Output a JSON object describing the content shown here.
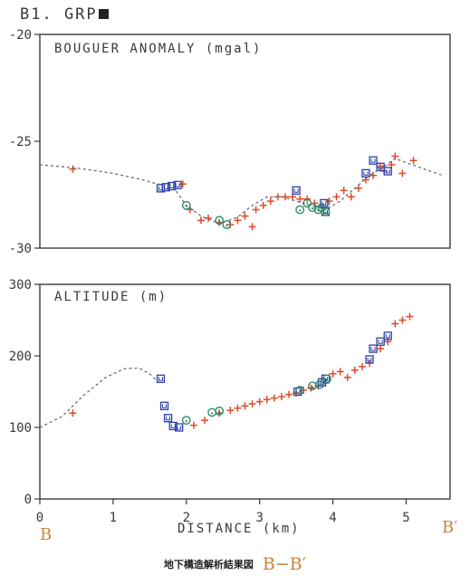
{
  "file_name": "B1. GRP",
  "profile_start_label": "B",
  "profile_end_label": "B′",
  "caption": {
    "japanese": "地下構造解析結果図",
    "profile": "B−B′"
  },
  "colors": {
    "axis": "#3a3a3a",
    "observed": "#e04a2a",
    "model": "#6e6e6e",
    "blue_markers": "#2c3fa8",
    "green_markers": "#2f8a6e",
    "end_labels": "#c8843c"
  },
  "marker_legend": {
    "observed": "plus",
    "blue_markers": "square-U",
    "green_markers": "circle"
  },
  "chart_data": [
    {
      "type": "scatter",
      "title": "BOUGUER ANOMALY (mgal)",
      "xlabel": "",
      "ylabel": "",
      "xlim": [
        0,
        5.6
      ],
      "ylim": [
        -30,
        -20
      ],
      "y_ticks": [
        -30,
        -25,
        -20
      ],
      "grid": false,
      "series": [
        {
          "marker": "plus",
          "color": "#e04a2a",
          "points": [
            [
              0.45,
              -26.3
            ],
            [
              1.95,
              -27.0
            ],
            [
              2.05,
              -28.2
            ],
            [
              2.2,
              -28.7
            ],
            [
              2.3,
              -28.6
            ],
            [
              2.45,
              -28.8
            ],
            [
              2.6,
              -28.9
            ],
            [
              2.7,
              -28.7
            ],
            [
              2.8,
              -28.5
            ],
            [
              2.9,
              -29.0
            ],
            [
              2.95,
              -28.2
            ],
            [
              3.05,
              -28.0
            ],
            [
              3.15,
              -27.8
            ],
            [
              3.25,
              -27.6
            ],
            [
              3.35,
              -27.6
            ],
            [
              3.45,
              -27.6
            ],
            [
              3.55,
              -27.7
            ],
            [
              3.65,
              -27.7
            ],
            [
              3.75,
              -27.9
            ],
            [
              3.85,
              -28.1
            ],
            [
              3.95,
              -27.8
            ],
            [
              4.05,
              -27.6
            ],
            [
              4.15,
              -27.3
            ],
            [
              4.25,
              -27.6
            ],
            [
              4.35,
              -27.2
            ],
            [
              4.45,
              -26.8
            ],
            [
              4.55,
              -26.6
            ],
            [
              4.65,
              -26.2
            ],
            [
              4.7,
              -26.4
            ],
            [
              4.8,
              -26.1
            ],
            [
              4.85,
              -25.7
            ],
            [
              4.95,
              -26.5
            ],
            [
              5.1,
              -25.9
            ]
          ]
        },
        {
          "marker": "square-U",
          "color": "#2c3fa8",
          "points": [
            [
              1.65,
              -27.2
            ],
            [
              1.72,
              -27.15
            ],
            [
              1.8,
              -27.1
            ],
            [
              1.88,
              -27.05
            ],
            [
              3.5,
              -27.3
            ],
            [
              3.88,
              -27.9
            ],
            [
              3.9,
              -28.3
            ],
            [
              4.45,
              -26.5
            ],
            [
              4.55,
              -25.9
            ],
            [
              4.65,
              -26.2
            ],
            [
              4.75,
              -26.4
            ]
          ]
        },
        {
          "marker": "circle",
          "color": "#2f8a6e",
          "points": [
            [
              2.0,
              -28.0
            ],
            [
              2.45,
              -28.7
            ],
            [
              2.55,
              -28.9
            ],
            [
              3.55,
              -28.2
            ],
            [
              3.65,
              -27.9
            ],
            [
              3.72,
              -28.1
            ],
            [
              3.8,
              -28.2
            ],
            [
              3.85,
              -28.1
            ],
            [
              3.9,
              -28.3
            ]
          ]
        },
        {
          "style": "dashed-line",
          "color": "#6e6e6e",
          "points": [
            [
              0,
              -26.1
            ],
            [
              0.5,
              -26.25
            ],
            [
              1.0,
              -26.5
            ],
            [
              1.4,
              -26.8
            ],
            [
              1.6,
              -27.0
            ],
            [
              1.8,
              -27.05
            ],
            [
              2.0,
              -28.0
            ],
            [
              2.2,
              -28.5
            ],
            [
              2.45,
              -28.85
            ],
            [
              2.7,
              -28.55
            ],
            [
              2.9,
              -28.0
            ],
            [
              3.1,
              -27.6
            ],
            [
              3.3,
              -27.6
            ],
            [
              3.5,
              -27.8
            ],
            [
              3.7,
              -28.0
            ],
            [
              3.9,
              -28.2
            ],
            [
              4.1,
              -27.8
            ],
            [
              4.3,
              -27.2
            ],
            [
              4.5,
              -26.6
            ],
            [
              4.7,
              -26.2
            ],
            [
              4.85,
              -25.8
            ],
            [
              5.0,
              -26.0
            ],
            [
              5.25,
              -26.3
            ],
            [
              5.5,
              -26.6
            ]
          ]
        }
      ]
    },
    {
      "type": "scatter",
      "title": "ALTITUDE (m)",
      "xlabel": "DISTANCE (km)",
      "ylabel": "",
      "xlim": [
        0,
        5.6
      ],
      "ylim": [
        0,
        300
      ],
      "x_ticks": [
        0,
        1,
        2,
        3,
        4,
        5
      ],
      "y_ticks": [
        0,
        100,
        200,
        300
      ],
      "grid": false,
      "series": [
        {
          "marker": "plus",
          "color": "#e04a2a",
          "points": [
            [
              0.45,
              120
            ],
            [
              2.1,
              103
            ],
            [
              2.25,
              110
            ],
            [
              2.45,
              120
            ],
            [
              2.6,
              124
            ],
            [
              2.7,
              127
            ],
            [
              2.8,
              130
            ],
            [
              2.9,
              133
            ],
            [
              3.0,
              136
            ],
            [
              3.1,
              139
            ],
            [
              3.2,
              141
            ],
            [
              3.3,
              143
            ],
            [
              3.4,
              146
            ],
            [
              3.5,
              148
            ],
            [
              3.6,
              152
            ],
            [
              3.7,
              155
            ],
            [
              3.8,
              158
            ],
            [
              3.9,
              162
            ],
            [
              4.0,
              175
            ],
            [
              4.1,
              178
            ],
            [
              4.2,
              170
            ],
            [
              4.3,
              180
            ],
            [
              4.4,
              185
            ],
            [
              4.5,
              190
            ],
            [
              4.65,
              210
            ],
            [
              4.75,
              220
            ],
            [
              4.85,
              245
            ],
            [
              4.95,
              250
            ],
            [
              5.05,
              255
            ]
          ]
        },
        {
          "marker": "square-U",
          "color": "#2c3fa8",
          "points": [
            [
              1.65,
              168
            ],
            [
              1.7,
              130
            ],
            [
              1.75,
              113
            ],
            [
              1.82,
              102
            ],
            [
              1.9,
              100
            ],
            [
              3.52,
              150
            ],
            [
              3.85,
              163
            ],
            [
              3.9,
              168
            ],
            [
              4.5,
              195
            ],
            [
              4.55,
              210
            ],
            [
              4.65,
              220
            ],
            [
              4.75,
              228
            ]
          ]
        },
        {
          "marker": "circle",
          "color": "#2f8a6e",
          "points": [
            [
              2.0,
              110
            ],
            [
              2.35,
              121
            ],
            [
              2.45,
              123
            ],
            [
              3.55,
              152
            ],
            [
              3.72,
              158
            ],
            [
              3.82,
              160
            ],
            [
              3.92,
              168
            ]
          ]
        },
        {
          "style": "dashed-line",
          "color": "#6e6e6e",
          "points": [
            [
              0,
              100
            ],
            [
              0.3,
              115
            ],
            [
              0.6,
              145
            ],
            [
              0.9,
              170
            ],
            [
              1.15,
              182
            ],
            [
              1.35,
              183
            ],
            [
              1.5,
              175
            ],
            [
              1.6,
              165
            ]
          ]
        }
      ]
    }
  ]
}
